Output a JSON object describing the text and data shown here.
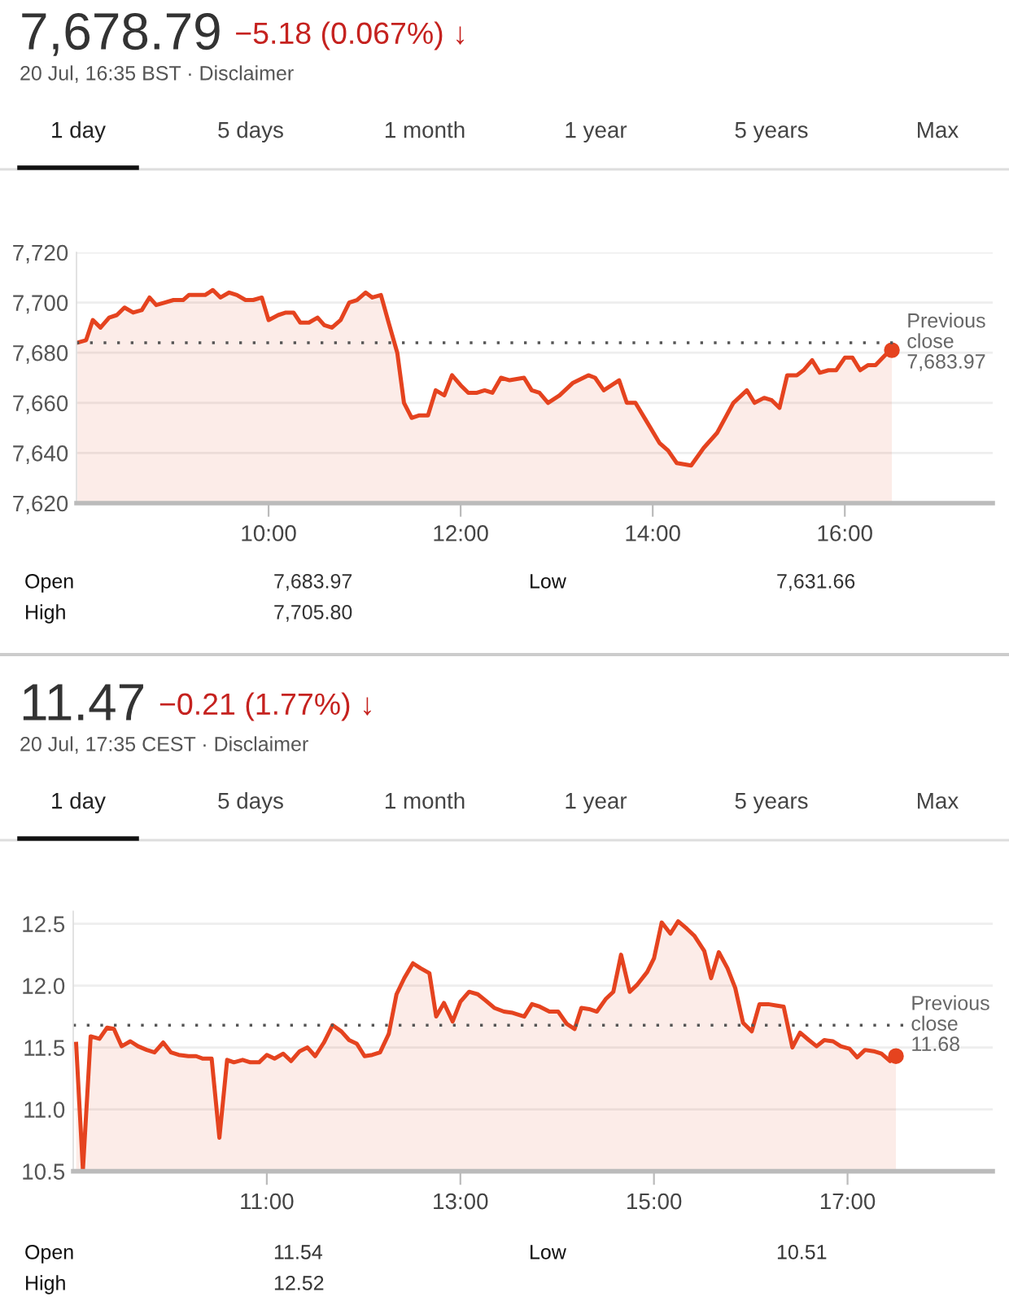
{
  "chart_data": [
    {
      "type": "area",
      "title": "7,678.79",
      "subtitle": "20 Jul, 16:35 BST · Disclaimer",
      "annotations": [
        "−5.18 (0.067%) ↓",
        "1 day",
        "5 days",
        "1 month",
        "1 year",
        "5 years",
        "Max",
        "Open",
        "7,683.97",
        "Low",
        "7,631.66",
        "High",
        "7,705.80"
      ],
      "x": [
        8.01,
        8.1,
        8.17,
        8.25,
        8.34,
        8.42,
        8.5,
        8.59,
        8.68,
        8.76,
        8.83,
        8.92,
        9.01,
        9.11,
        9.17,
        9.26,
        9.34,
        9.42,
        9.5,
        9.59,
        9.67,
        9.76,
        9.84,
        9.93,
        10.0,
        10.1,
        10.18,
        10.26,
        10.33,
        10.42,
        10.51,
        10.58,
        10.66,
        10.75,
        10.84,
        10.92,
        11.01,
        11.08,
        11.17,
        11.25,
        11.34,
        11.41,
        11.49,
        11.57,
        11.66,
        11.74,
        11.83,
        11.91,
        12.0,
        12.08,
        12.17,
        12.25,
        12.33,
        12.42,
        12.51,
        12.66,
        12.74,
        12.82,
        12.91,
        13.03,
        13.17,
        13.33,
        13.4,
        13.49,
        13.65,
        13.73,
        13.82,
        13.93,
        14.07,
        14.16,
        14.25,
        14.4,
        14.53,
        14.67,
        14.84,
        14.98,
        15.06,
        15.16,
        15.24,
        15.32,
        15.4,
        15.5,
        15.57,
        15.66,
        15.74,
        15.83,
        15.91,
        16.0,
        16.08,
        16.16,
        16.24,
        16.32,
        16.42,
        16.49
      ],
      "series": [
        {
          "color": "#e5431f",
          "values": [
            7684,
            7685,
            7693,
            7690,
            7694,
            7695,
            7698,
            7696,
            7697,
            7702,
            7699,
            7700,
            7701,
            7701,
            7703,
            7703,
            7703,
            7705,
            7702,
            7704,
            7703,
            7701,
            7701,
            7702,
            7693,
            7695,
            7696,
            7696,
            7692,
            7692,
            7694,
            7691,
            7690,
            7693,
            7700,
            7701,
            7704,
            7702,
            7703,
            7692,
            7680,
            7660,
            7654,
            7655,
            7655,
            7665,
            7663,
            7671,
            7667,
            7664,
            7664,
            7665,
            7664,
            7670,
            7669,
            7670,
            7665,
            7664,
            7660,
            7663,
            7668,
            7671,
            7670,
            7665,
            7669,
            7660,
            7660,
            7653,
            7644,
            7641,
            7636,
            7635,
            7642,
            7648,
            7660,
            7665,
            7660,
            7662,
            7661,
            7658,
            7671,
            7671,
            7673,
            7677,
            7672,
            7673,
            7673,
            7678,
            7678,
            7673,
            7675,
            7675,
            7679,
            7681
          ]
        }
      ],
      "xlim": [
        8,
        17.54
      ],
      "ylim": [
        7620,
        7720
      ],
      "xticks": [
        {
          "value": 10,
          "label": "10:00"
        },
        {
          "value": 12,
          "label": "12:00"
        },
        {
          "value": 14,
          "label": "14:00"
        },
        {
          "value": 16,
          "label": "16:00"
        }
      ],
      "yticks": [
        {
          "value": 7620,
          "label": "7,620"
        },
        {
          "value": 7640,
          "label": "7,640"
        },
        {
          "value": 7660,
          "label": "7,660"
        },
        {
          "value": 7680,
          "label": "7,680"
        },
        {
          "value": 7700,
          "label": "7,700"
        },
        {
          "value": 7720,
          "label": "7,720"
        }
      ],
      "ref_lines": [
        {
          "axis": "y",
          "value": 7683.97,
          "label": "Previous\nclose\n7,683.97",
          "line_style": "dotted",
          "color": "#555555"
        }
      ],
      "grid": "y"
    },
    {
      "type": "area",
      "title": "11.47",
      "subtitle": "20 Jul, 17:35 CEST · Disclaimer",
      "annotations": [
        "−0.21 (1.77%) ↓",
        "1 day",
        "5 days",
        "1 month",
        "1 year",
        "5 years",
        "Max",
        "Open",
        "11.54",
        "Low",
        "10.51",
        "High",
        "12.52"
      ],
      "x": [
        9.03,
        9.1,
        9.18,
        9.27,
        9.35,
        9.42,
        9.5,
        9.59,
        9.67,
        9.76,
        9.84,
        9.93,
        10.01,
        10.09,
        10.19,
        10.27,
        10.34,
        10.43,
        10.51,
        10.59,
        10.66,
        10.75,
        10.83,
        10.92,
        11.0,
        11.08,
        11.17,
        11.25,
        11.34,
        11.42,
        11.5,
        11.59,
        11.68,
        11.77,
        11.85,
        11.93,
        12.01,
        12.09,
        12.17,
        12.26,
        12.34,
        12.42,
        12.51,
        12.59,
        12.68,
        12.75,
        12.83,
        12.92,
        13.0,
        13.09,
        13.18,
        13.26,
        13.35,
        13.45,
        13.54,
        13.66,
        13.74,
        13.82,
        13.92,
        14.01,
        14.1,
        14.18,
        14.25,
        14.33,
        14.41,
        14.5,
        14.58,
        14.66,
        14.75,
        14.83,
        14.93,
        15.0,
        15.08,
        15.17,
        15.25,
        15.34,
        15.42,
        15.52,
        15.59,
        15.67,
        15.76,
        15.84,
        15.92,
        16.01,
        16.09,
        16.18,
        16.26,
        16.34,
        16.43,
        16.51,
        16.6,
        16.68,
        16.76,
        16.85,
        16.93,
        17.02,
        17.1,
        17.18,
        17.27,
        17.35,
        17.44,
        17.5
      ],
      "series": [
        {
          "color": "#e5431f",
          "values": [
            11.53,
            10.51,
            11.59,
            11.57,
            11.66,
            11.65,
            11.51,
            11.55,
            11.51,
            11.48,
            11.46,
            11.54,
            11.46,
            11.44,
            11.43,
            11.43,
            11.41,
            11.41,
            10.77,
            11.4,
            11.38,
            11.4,
            11.38,
            11.38,
            11.44,
            11.41,
            11.45,
            11.39,
            11.47,
            11.5,
            11.43,
            11.54,
            11.68,
            11.63,
            11.56,
            11.53,
            11.43,
            11.44,
            11.46,
            11.61,
            11.93,
            12.06,
            12.18,
            12.14,
            12.1,
            11.75,
            11.86,
            11.71,
            11.87,
            11.95,
            11.93,
            11.88,
            11.82,
            11.79,
            11.78,
            11.75,
            11.85,
            11.83,
            11.79,
            11.79,
            11.69,
            11.65,
            11.82,
            11.81,
            11.79,
            11.89,
            11.95,
            12.25,
            11.95,
            12.01,
            12.11,
            12.22,
            12.51,
            12.42,
            12.52,
            12.46,
            12.4,
            12.28,
            12.06,
            12.27,
            12.14,
            11.98,
            11.7,
            11.63,
            11.85,
            11.85,
            11.84,
            11.83,
            11.5,
            11.62,
            11.56,
            11.51,
            11.56,
            11.55,
            11.51,
            11.49,
            11.42,
            11.48,
            11.47,
            11.45,
            11.39,
            11.43
          ]
        }
      ],
      "xlim": [
        9,
        18.5
      ],
      "ylim": [
        10.5,
        12.6
      ],
      "xticks": [
        {
          "value": 11,
          "label": "11:00"
        },
        {
          "value": 13,
          "label": "13:00"
        },
        {
          "value": 15,
          "label": "15:00"
        },
        {
          "value": 17,
          "label": "17:00"
        }
      ],
      "yticks": [
        {
          "value": 10.5,
          "label": "10.5"
        },
        {
          "value": 11.0,
          "label": "11.0"
        },
        {
          "value": 11.5,
          "label": "11.5"
        },
        {
          "value": 12.0,
          "label": "12.0"
        },
        {
          "value": 12.5,
          "label": "12.5"
        }
      ],
      "ref_lines": [
        {
          "axis": "y",
          "value": 11.68,
          "label": "Previous\nclose\n11.68",
          "line_style": "dotted",
          "color": "#555555"
        }
      ],
      "grid": "y"
    }
  ]
}
